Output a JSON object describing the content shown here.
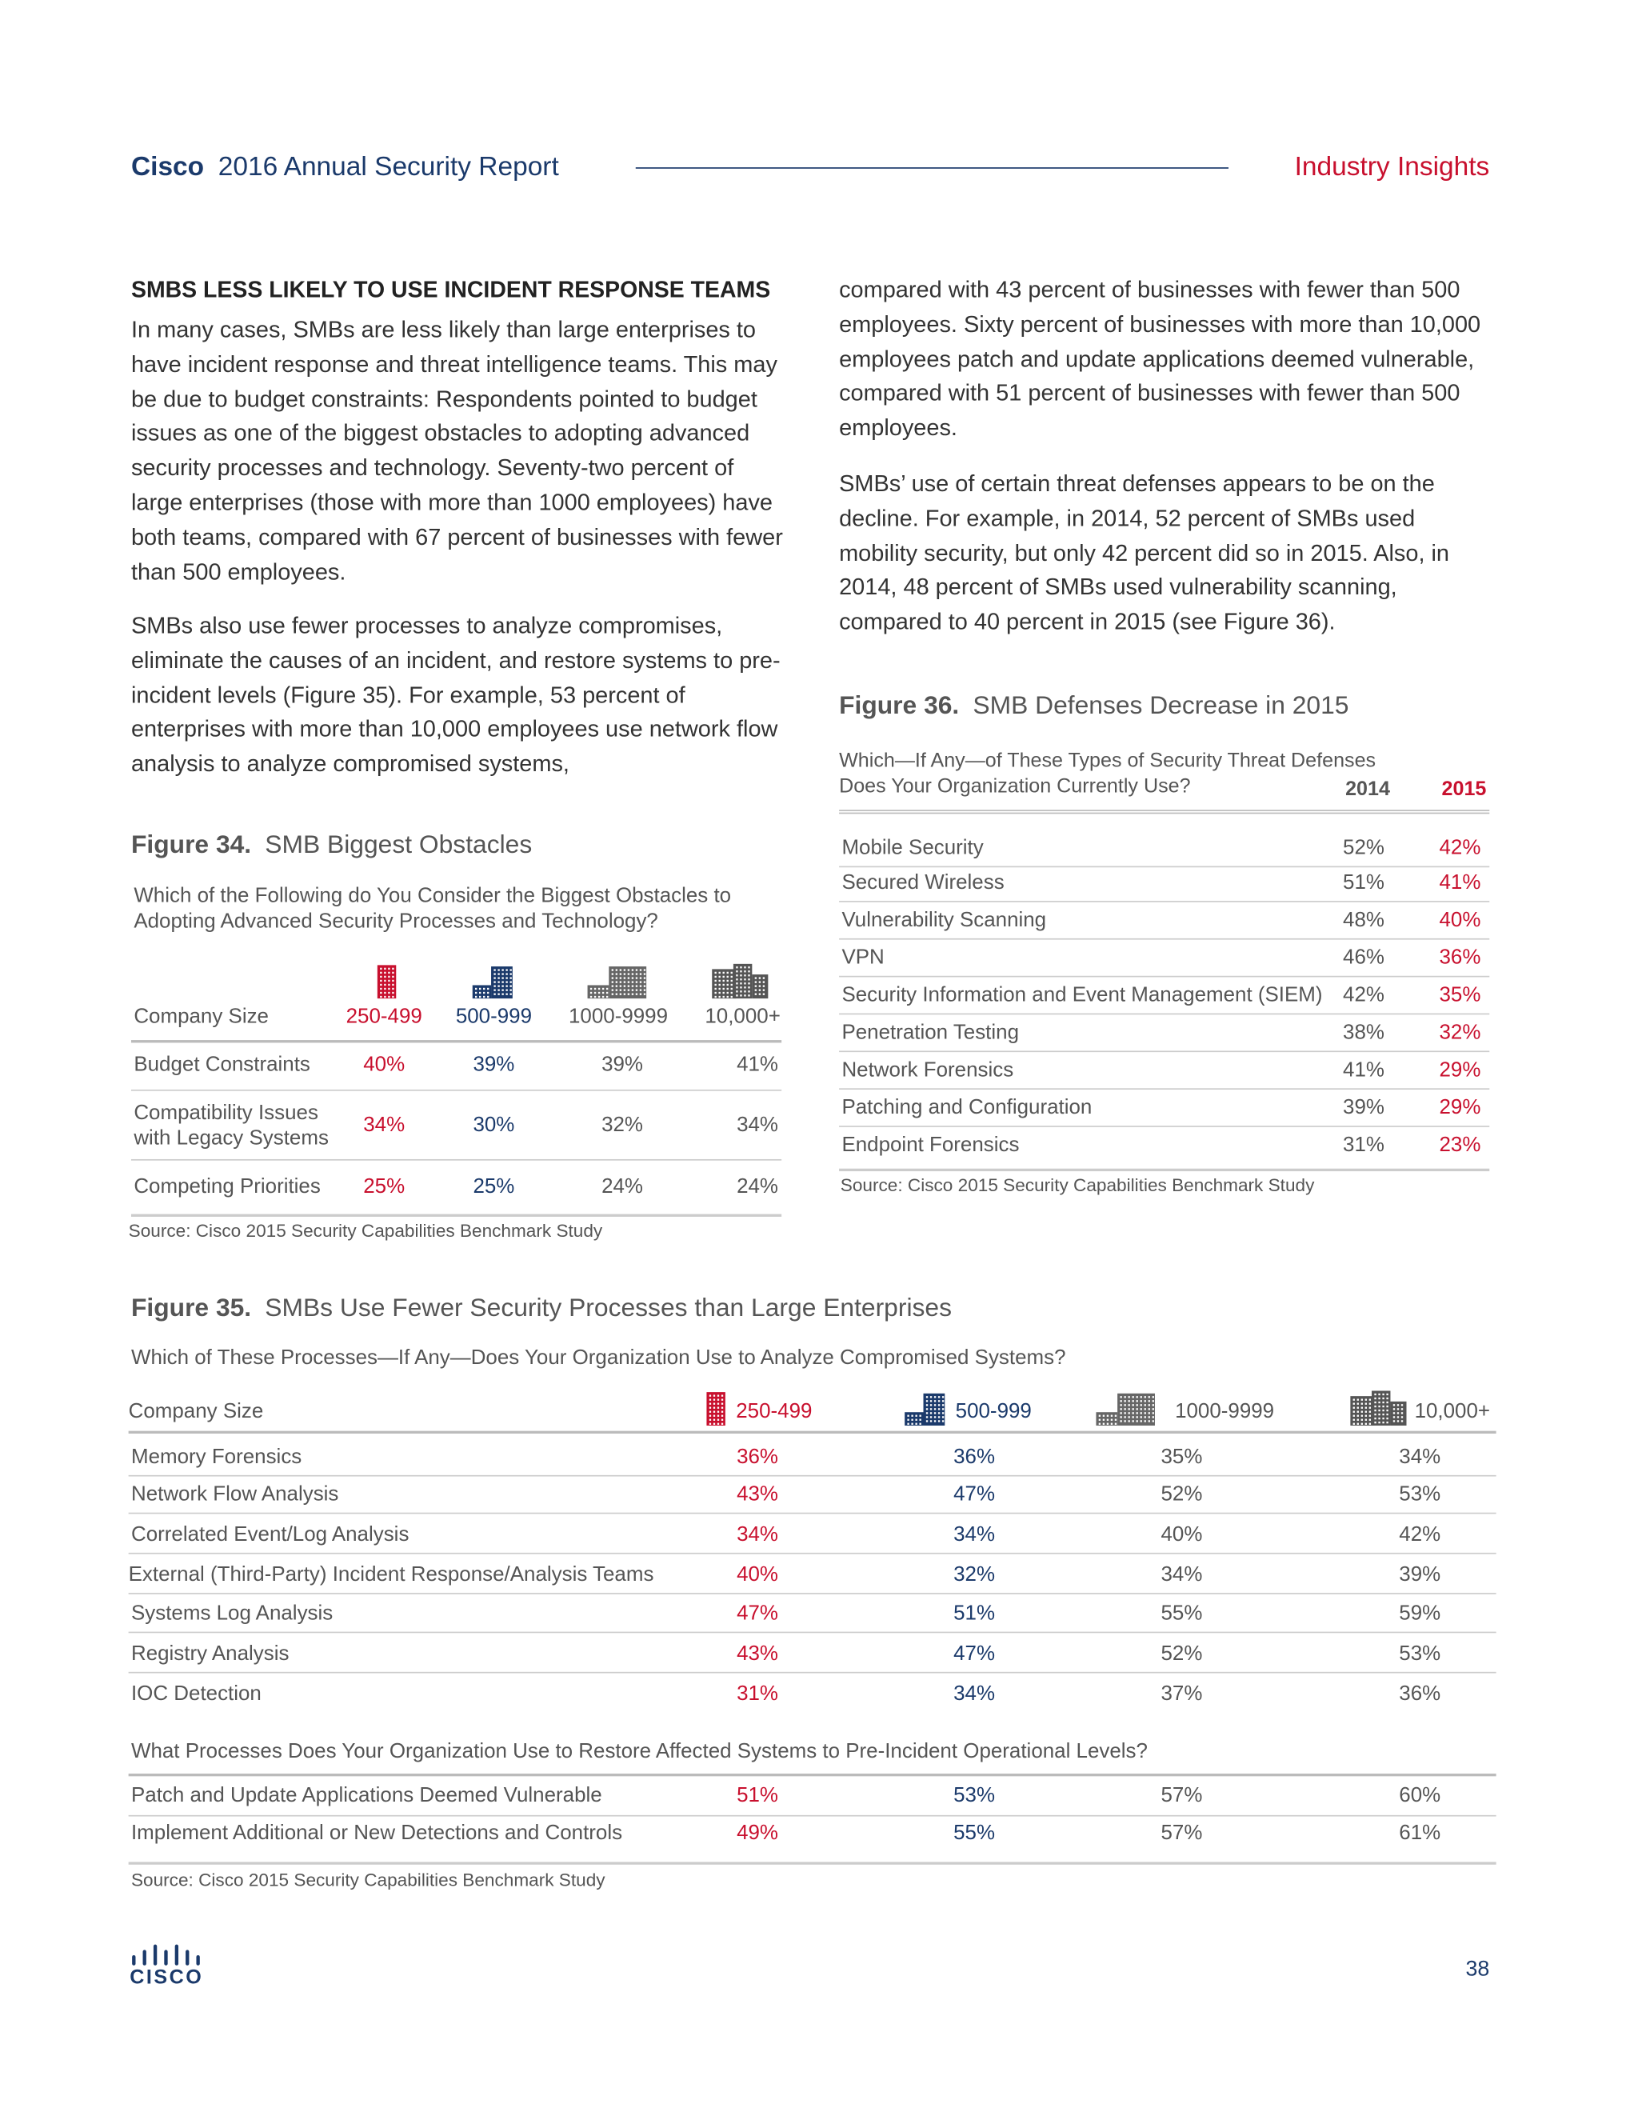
{
  "header": {
    "brand": "Cisco",
    "title": "2016 Annual Security Report",
    "section": "Industry Insights"
  },
  "left_column": {
    "heading": "SMBS LESS LIKELY TO USE INCIDENT RESPONSE TEAMS",
    "paragraphs": [
      "In many cases, SMBs are less likely than large enterprises to have incident response and threat intelligence teams. This may be due to budget constraints: Respondents pointed to budget issues as one of the biggest obstacles to adopting advanced security processes and technology. Seventy-two percent of large enterprises (those with more than 1000 employees) have both teams, compared with 67 percent of businesses with fewer than 500 employees.",
      "SMBs also use fewer processes to analyze compromises, eliminate the causes of an incident, and restore systems to pre-incident levels (Figure 35). For example, 53 percent of enterprises with more than 10,000 employees use network flow analysis to analyze compromised systems,"
    ]
  },
  "right_column": {
    "paragraphs": [
      "compared with 43 percent of businesses with fewer than 500 employees. Sixty percent of businesses with more than 10,000 employees patch and update applications deemed vulnerable, compared with 51 percent of businesses with fewer than 500 employees.",
      "SMBs’ use of certain threat defenses appears to be on the decline. For example, in 2014, 52 percent of SMBs used mobility security, but only 42 percent did so in 2015. Also, in 2014, 48 percent of SMBs used vulnerability scanning, compared to 40 percent in 2015 (see Figure 36)."
    ]
  },
  "figure34": {
    "label": "Figure 34.",
    "title": "SMB Biggest Obstacles",
    "question": "Which of the Following do You Consider the Biggest Obstacles to Adopting Advanced Security Processes and Technology?",
    "columns": [
      "Company Size",
      "250-499",
      "500-999",
      "1000-9999",
      "10,000+"
    ],
    "rows": [
      [
        "Budget Constraints",
        "40%",
        "39%",
        "39%",
        "41%"
      ],
      [
        "Compatibility Issues with Legacy Systems",
        "34%",
        "30%",
        "32%",
        "34%"
      ],
      [
        "Competing Priorities",
        "25%",
        "25%",
        "24%",
        "24%"
      ]
    ],
    "source": "Source: Cisco 2015 Security Capabilities Benchmark Study"
  },
  "figure36": {
    "label": "Figure 36.",
    "title": "SMB Defenses Decrease in 2015",
    "question": "Which—If Any—of These Types of Security Threat Defenses Does Your Organization Currently Use?",
    "columns": [
      "2014",
      "2015"
    ],
    "rows": [
      [
        "Mobile Security",
        "52%",
        "42%"
      ],
      [
        "Secured Wireless",
        "51%",
        "41%"
      ],
      [
        "Vulnerability Scanning",
        "48%",
        "40%"
      ],
      [
        "VPN",
        "46%",
        "36%"
      ],
      [
        "Security Information and Event Management (SIEM)",
        "42%",
        "35%"
      ],
      [
        "Penetration Testing",
        "38%",
        "32%"
      ],
      [
        "Network Forensics",
        "41%",
        "29%"
      ],
      [
        "Patching and Configuration",
        "39%",
        "29%"
      ],
      [
        "Endpoint Forensics",
        "31%",
        "23%"
      ]
    ],
    "source": "Source: Cisco 2015 Security Capabilities Benchmark Study"
  },
  "figure35": {
    "label": "Figure 35.",
    "title": "SMBs Use Fewer Security Processes than Large Enterprises",
    "question1": "Which of These Processes—If Any—Does Your Organization Use to Analyze Compromised Systems?",
    "columns": [
      "Company Size",
      "250-499",
      "500-999",
      "1000-9999",
      "10,000+"
    ],
    "rows1": [
      [
        "Memory Forensics",
        "36%",
        "36%",
        "35%",
        "34%"
      ],
      [
        "Network Flow Analysis",
        "43%",
        "47%",
        "52%",
        "53%"
      ],
      [
        "Correlated Event/Log Analysis",
        "34%",
        "34%",
        "40%",
        "42%"
      ],
      [
        "External (Third-Party) Incident Response/Analysis Teams",
        "40%",
        "32%",
        "34%",
        "39%"
      ],
      [
        "Systems Log Analysis",
        "47%",
        "51%",
        "55%",
        "59%"
      ],
      [
        "Registry Analysis",
        "43%",
        "47%",
        "52%",
        "53%"
      ],
      [
        "IOC Detection",
        "31%",
        "34%",
        "37%",
        "36%"
      ]
    ],
    "question2": "What Processes Does Your Organization Use to Restore Affected Systems to Pre-Incident Operational Levels?",
    "rows2": [
      [
        "Patch and Update Applications Deemed Vulnerable",
        "51%",
        "53%",
        "57%",
        "60%"
      ],
      [
        "Implement Additional or New Detections and Controls",
        "49%",
        "55%",
        "57%",
        "61%"
      ]
    ],
    "source": "Source: Cisco 2015 Security Capabilities Benchmark Study"
  },
  "footer": {
    "logo": "CISCO",
    "page_number": "38"
  }
}
